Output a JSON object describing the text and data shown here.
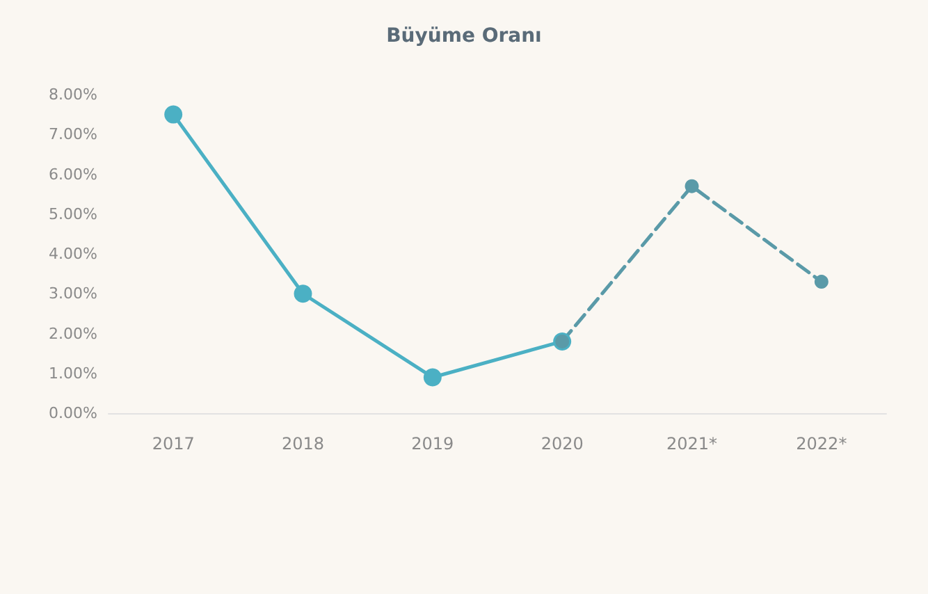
{
  "chart_data": {
    "type": "line",
    "title": "Büyüme Oranı",
    "categories": [
      "2017",
      "2018",
      "2019",
      "2020",
      "2021*",
      "2022*"
    ],
    "series": [
      {
        "color": "#4bb0c4",
        "values": [
          7.5,
          3.0,
          0.9,
          1.8,
          null,
          null
        ],
        "line_style": "solid"
      },
      {
        "color": "#5a9aa8",
        "values": [
          null,
          null,
          null,
          1.8,
          5.7,
          3.3
        ],
        "line_style": "dashed"
      }
    ],
    "ylim": [
      0,
      8
    ],
    "yticks": [
      {
        "value": 0,
        "label": "0.00%"
      },
      {
        "value": 1,
        "label": "1.00%"
      },
      {
        "value": 2,
        "label": "2.00%"
      },
      {
        "value": 3,
        "label": "3.00%"
      },
      {
        "value": 4,
        "label": "4.00%"
      },
      {
        "value": 5,
        "label": "5.00%"
      },
      {
        "value": 6,
        "label": "6.00%"
      },
      {
        "value": 7,
        "label": "7.00%"
      },
      {
        "value": 8,
        "label": "8.00%"
      }
    ],
    "marker": "circle",
    "grid": false
  }
}
